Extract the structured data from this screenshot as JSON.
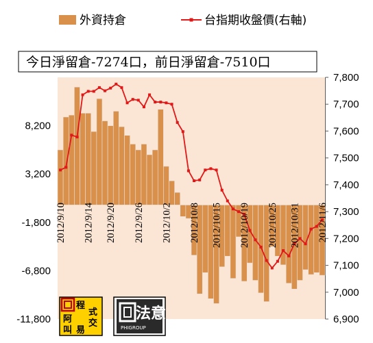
{
  "chart_data": {
    "type": "bar+line",
    "title": "",
    "annotation": "今日淨留倉-7274口，前日淨留倉-7510口",
    "legend": {
      "bars_label": "外資持倉",
      "line_label": "台指期收盤價(右軸)",
      "placement": "top"
    },
    "colors": {
      "bars": "#d9904a",
      "bar_edge": "#e8e2de",
      "line": "#e01818",
      "plot_bg": "#fbe6d5"
    },
    "y_left": {
      "ticks": [
        "8,200",
        "3,200",
        "-1,800",
        "-6,800",
        "-11,800"
      ],
      "range": [
        -11800,
        13200
      ]
    },
    "y_right": {
      "ticks": [
        "7,800",
        "7,700",
        "7,600",
        "7,500",
        "7,400",
        "7,300",
        "7,200",
        "7,100",
        "7,000",
        "6,900"
      ],
      "range": [
        6900,
        7800
      ]
    },
    "x_labels": [
      "2012/9/10",
      "2012/9/14",
      "2012/9/20",
      "2012/9/26",
      "2012/10/2",
      "2012/10/8",
      "2012/10/15",
      "2012/10/19",
      "2012/10/25",
      "2012/10/31",
      "2012/11/6"
    ],
    "grid": false,
    "series": [
      {
        "name": "外資持倉",
        "kind": "bar",
        "axis": "left",
        "values": [
          5700,
          9100,
          9300,
          12200,
          9500,
          9500,
          7600,
          11000,
          8700,
          8200,
          9700,
          8100,
          7200,
          6300,
          5700,
          6300,
          5200,
          5700,
          9900,
          4000,
          2500,
          1300,
          -1200,
          -1400,
          -5200,
          -9200,
          -7000,
          -9700,
          -10200,
          -6400,
          -5300,
          -7600,
          -3300,
          -7900,
          -6000,
          -7800,
          -9100,
          -10000,
          -4300,
          -5300,
          -6200,
          -8100,
          -8700,
          -7800,
          -6700,
          -7200,
          -7000,
          -7274
        ]
      },
      {
        "name": "台指期收盤價(右軸)",
        "kind": "line",
        "axis": "right",
        "values": [
          7455,
          7465,
          7585,
          7578,
          7735,
          7748,
          7748,
          7762,
          7750,
          7760,
          7775,
          7762,
          7705,
          7718,
          7715,
          7690,
          7735,
          7708,
          7708,
          7705,
          7700,
          7632,
          7598,
          7452,
          7415,
          7418,
          7455,
          7460,
          7455,
          7380,
          7340,
          7310,
          7300,
          7290,
          7230,
          7195,
          7168,
          7118,
          7090,
          7115,
          7155,
          7135,
          7180,
          7200,
          7180,
          7235,
          7245,
          7270
        ]
      }
    ]
  },
  "logos": {
    "small_logo_chars": [
      "阿",
      "叫",
      "程",
      "式",
      "交",
      "易"
    ],
    "brand_name": "法意",
    "brand_sub": "PHIGROUP"
  }
}
